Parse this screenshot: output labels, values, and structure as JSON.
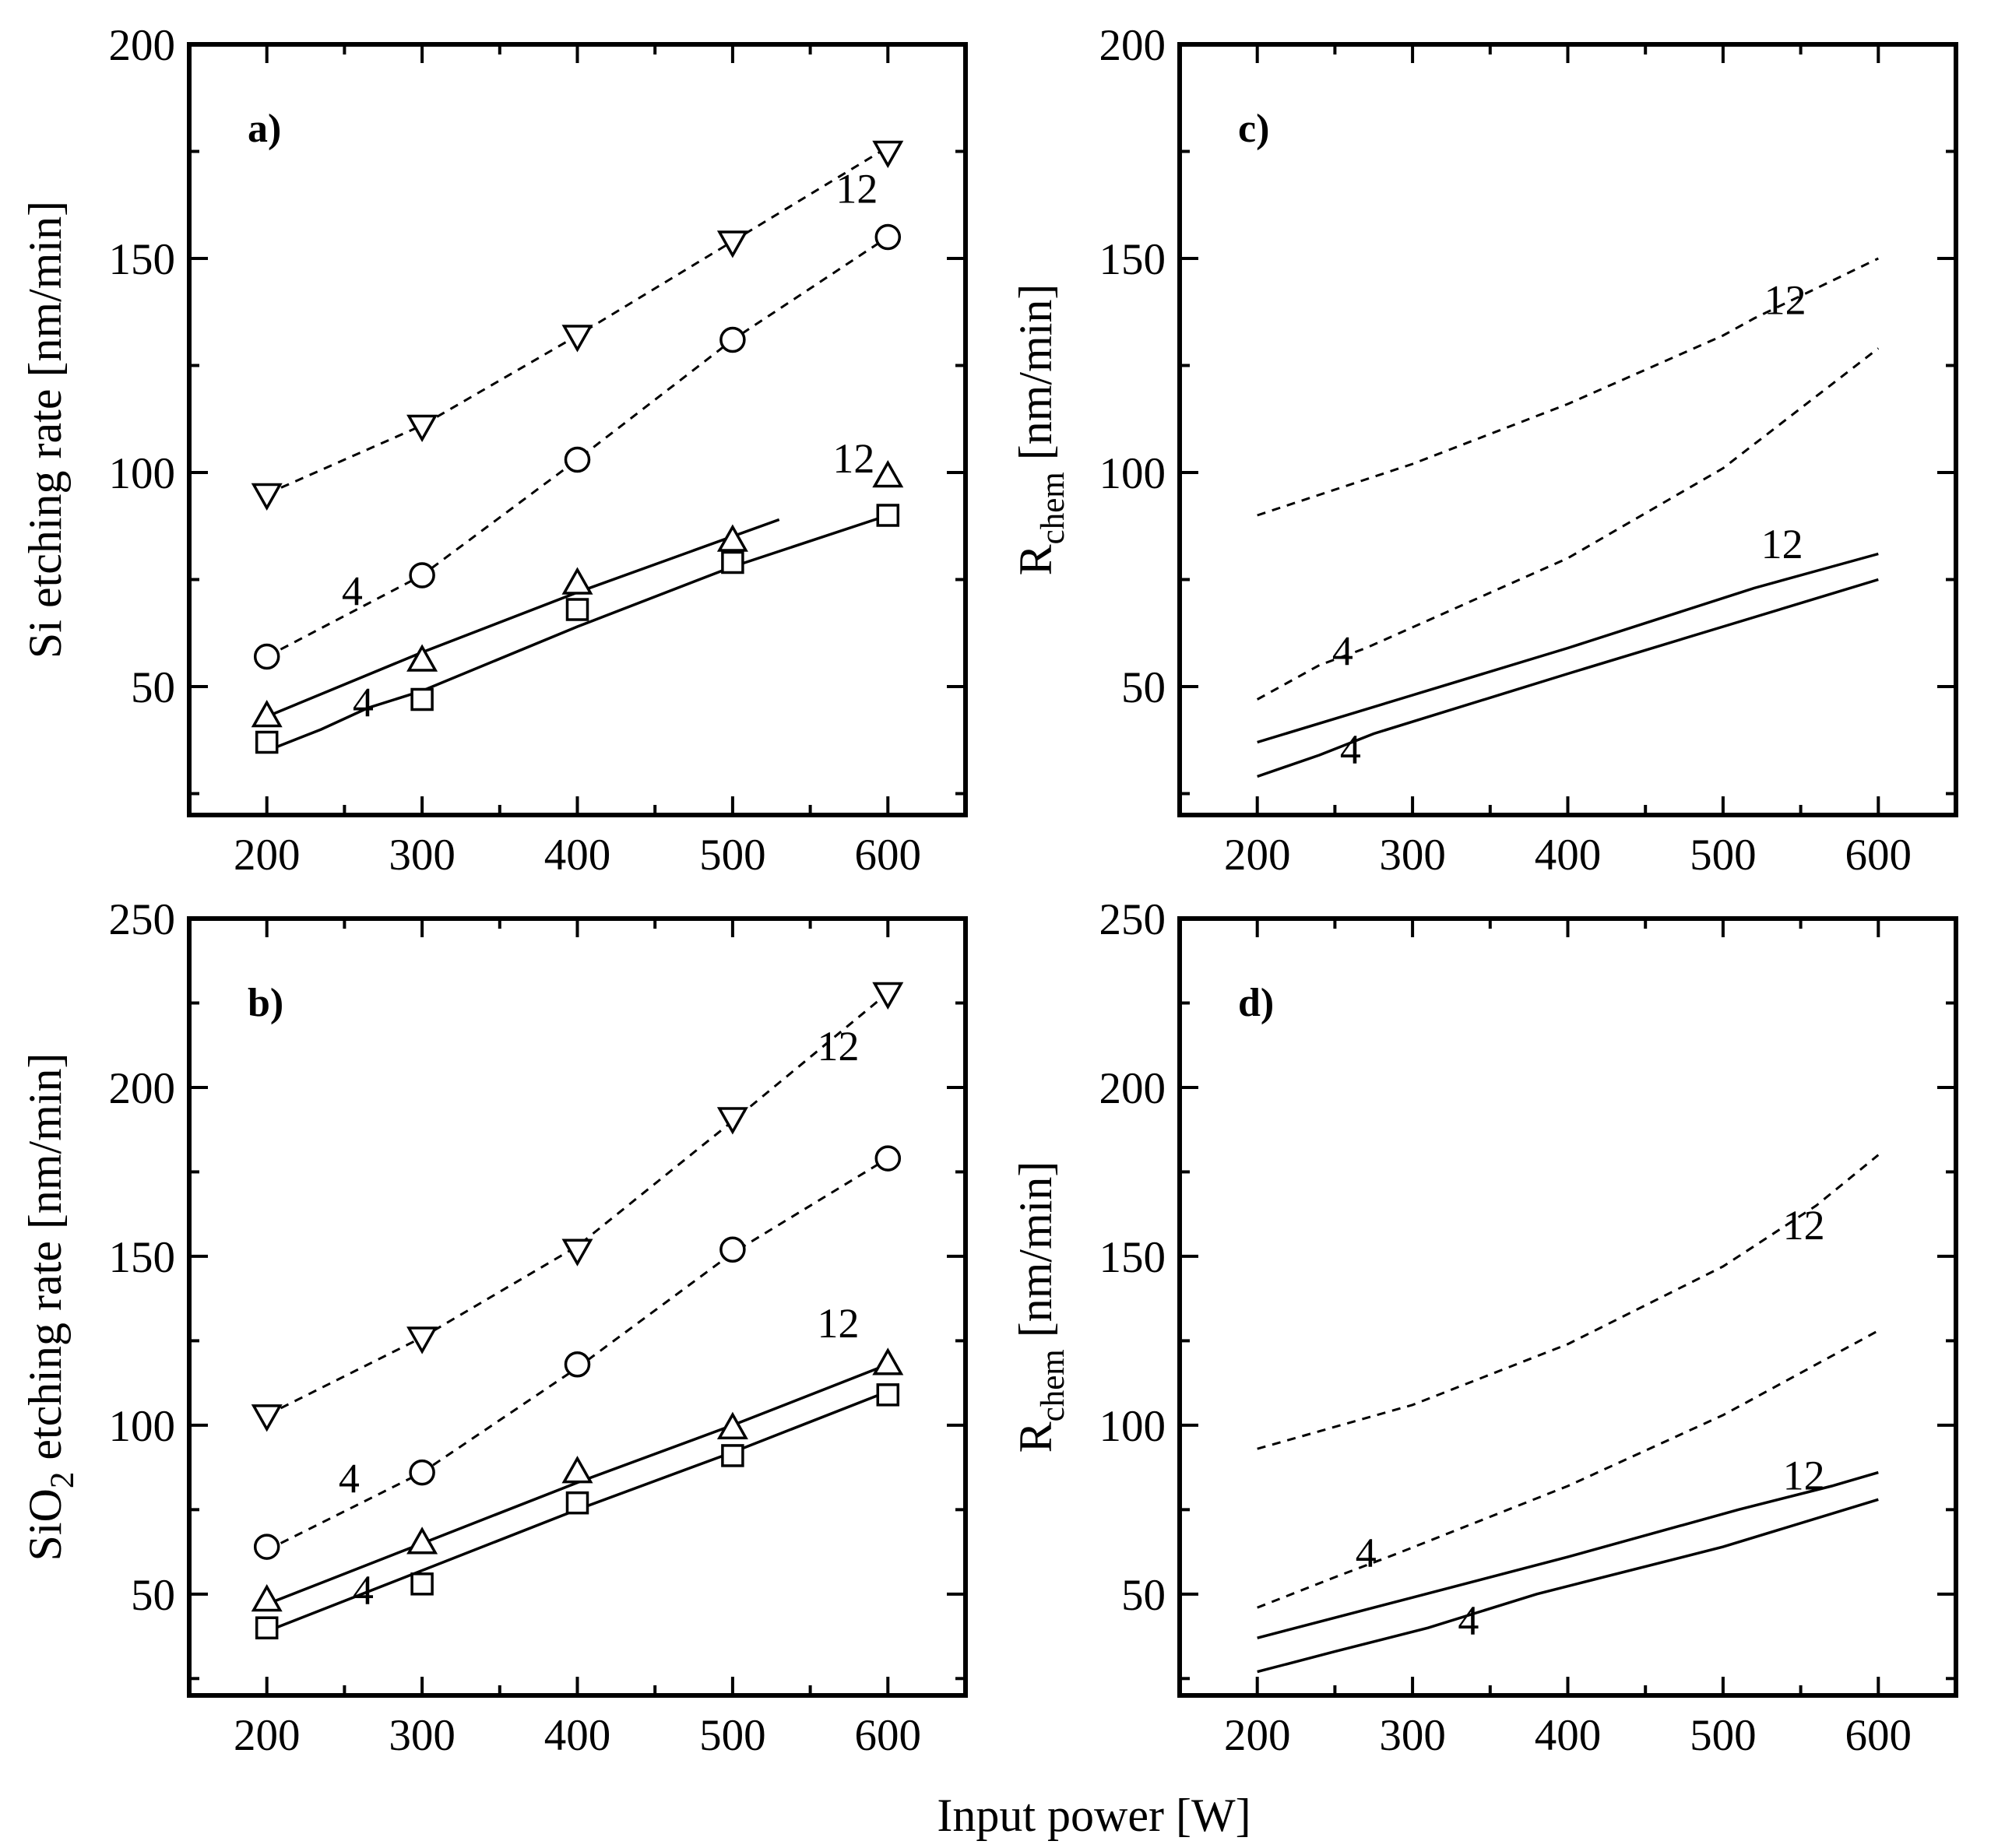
{
  "figure": {
    "common_xlabel": "Input power [W]"
  },
  "chart_data": [
    {
      "id": "a",
      "type": "line",
      "panel_label": "a)",
      "ylabel": "Si etching rate [nm/min]",
      "xlim": [
        150,
        650
      ],
      "ylim": [
        20,
        200
      ],
      "xticks": [
        200,
        300,
        400,
        500,
        600
      ],
      "yticks": [
        50,
        100,
        150,
        200
      ],
      "series": [
        {
          "name": "down-triangle",
          "marker": "tri-down",
          "line": "dashed",
          "x": [
            200,
            300,
            400,
            500,
            600
          ],
          "values": [
            95,
            111,
            132,
            154,
            175
          ],
          "curve_x": [
            200,
            300,
            400,
            500,
            600
          ],
          "curve_y": [
            95,
            111,
            132,
            154,
            176
          ]
        },
        {
          "name": "circle",
          "marker": "circle",
          "line": "dashed",
          "x": [
            200,
            300,
            400,
            500,
            600
          ],
          "values": [
            57,
            76,
            103,
            131,
            155
          ],
          "curve_x": [
            200,
            300,
            400,
            500,
            600
          ],
          "curve_y": [
            57,
            76,
            103,
            131,
            155
          ]
        },
        {
          "name": "up-triangle",
          "marker": "tri-up",
          "line": "solid",
          "x": [
            200,
            300,
            400,
            500,
            600
          ],
          "values": [
            43,
            56,
            74,
            84,
            99
          ],
          "curve_x": [
            200,
            300,
            400,
            530
          ],
          "curve_y": [
            43,
            58,
            72,
            89
          ]
        },
        {
          "name": "square",
          "marker": "square",
          "line": "solid",
          "x": [
            200,
            300,
            400,
            500,
            600
          ],
          "values": [
            37,
            47,
            68,
            79,
            90
          ],
          "curve_x": [
            200,
            235,
            265,
            300,
            400,
            500,
            600
          ],
          "curve_y": [
            35,
            40,
            45,
            49,
            64,
            78,
            90
          ]
        }
      ],
      "annotations": [
        {
          "text": "12",
          "x": 580,
          "y": 163
        },
        {
          "text": "4",
          "x": 255,
          "y": 69
        },
        {
          "text": "12",
          "x": 578,
          "y": 100
        },
        {
          "text": "4",
          "x": 262,
          "y": 43
        }
      ]
    },
    {
      "id": "c",
      "type": "line",
      "panel_label": "c)",
      "ylabel_main": "R",
      "ylabel_sub": "chem",
      "ylabel_rest": " [nm/min]",
      "xlim": [
        150,
        650
      ],
      "ylim": [
        20,
        200
      ],
      "xticks": [
        200,
        300,
        400,
        500,
        600
      ],
      "yticks": [
        50,
        100,
        150,
        200
      ],
      "series": [
        {
          "name": "dashed-12",
          "line": "dashed",
          "curve_x": [
            200,
            300,
            400,
            500,
            520,
            560,
            600
          ],
          "curve_y": [
            90,
            102,
            116,
            132,
            136,
            143,
            150
          ]
        },
        {
          "name": "dashed-4",
          "line": "dashed",
          "curve_x": [
            200,
            240,
            270,
            400,
            500,
            600
          ],
          "curve_y": [
            47,
            55,
            59,
            80,
            101,
            129
          ]
        },
        {
          "name": "solid-12",
          "line": "solid",
          "curve_x": [
            200,
            300,
            400,
            520,
            560,
            600
          ],
          "curve_y": [
            37,
            48,
            59,
            73,
            77,
            81
          ]
        },
        {
          "name": "solid-4",
          "line": "solid",
          "curve_x": [
            200,
            240,
            275,
            400,
            500,
            600
          ],
          "curve_y": [
            29,
            34,
            39,
            53,
            64,
            75
          ]
        }
      ],
      "annotations": [
        {
          "text": "12",
          "x": 540,
          "y": 137
        },
        {
          "text": "4",
          "x": 255,
          "y": 55
        },
        {
          "text": "12",
          "x": 538,
          "y": 80
        },
        {
          "text": "4",
          "x": 260,
          "y": 32
        }
      ]
    },
    {
      "id": "b",
      "type": "line",
      "panel_label": "b)",
      "ylabel_main": "SiO",
      "ylabel_sub": "2",
      "ylabel_rest": " etching rate [nm/min]",
      "xlim": [
        150,
        650
      ],
      "ylim": [
        20,
        250
      ],
      "xticks": [
        200,
        300,
        400,
        500,
        600
      ],
      "yticks": [
        50,
        100,
        150,
        200,
        250
      ],
      "series": [
        {
          "name": "down-triangle",
          "marker": "tri-down",
          "line": "dashed",
          "x": [
            200,
            300,
            400,
            500,
            600
          ],
          "values": [
            103,
            126,
            152,
            191,
            228
          ],
          "curve_x": [
            200,
            300,
            400,
            500,
            600
          ],
          "curve_y": [
            103,
            126,
            153,
            190,
            228
          ]
        },
        {
          "name": "circle",
          "marker": "circle",
          "line": "dashed",
          "x": [
            200,
            300,
            400,
            500,
            600
          ],
          "values": [
            64,
            86,
            118,
            152,
            179
          ],
          "curve_x": [
            200,
            300,
            400,
            500,
            600
          ],
          "curve_y": [
            63,
            86,
            117,
            151,
            179
          ]
        },
        {
          "name": "up-triangle",
          "marker": "tri-up",
          "line": "solid",
          "x": [
            200,
            300,
            400,
            500,
            600
          ],
          "values": [
            48,
            65,
            86,
            99,
            118
          ],
          "curve_x": [
            200,
            300,
            400,
            500,
            600
          ],
          "curve_y": [
            47,
            65,
            83,
            100,
            118
          ]
        },
        {
          "name": "square",
          "marker": "square",
          "line": "solid",
          "x": [
            200,
            300,
            400,
            500,
            600
          ],
          "values": [
            40,
            53,
            77,
            91,
            109
          ],
          "curve_x": [
            200,
            300,
            400,
            500,
            600
          ],
          "curve_y": [
            39,
            57,
            75,
            92,
            110
          ]
        }
      ],
      "annotations": [
        {
          "text": "12",
          "x": 568,
          "y": 208
        },
        {
          "text": "4",
          "x": 253,
          "y": 80
        },
        {
          "text": "12",
          "x": 568,
          "y": 126
        },
        {
          "text": "4",
          "x": 262,
          "y": 47
        }
      ]
    },
    {
      "id": "d",
      "type": "line",
      "panel_label": "d)",
      "ylabel_main": "R",
      "ylabel_sub": "chem",
      "ylabel_rest": " [nm/min]",
      "xlim": [
        150,
        650
      ],
      "ylim": [
        20,
        250
      ],
      "xticks": [
        200,
        300,
        400,
        500,
        600
      ],
      "yticks": [
        50,
        100,
        150,
        200,
        250
      ],
      "series": [
        {
          "name": "dashed-12",
          "line": "dashed",
          "curve_x": [
            200,
            300,
            400,
            500,
            520,
            560,
            600
          ],
          "curve_y": [
            93,
            106,
            124,
            147,
            153,
            165,
            180
          ]
        },
        {
          "name": "dashed-4",
          "line": "dashed",
          "curve_x": [
            200,
            250,
            290,
            400,
            500,
            600
          ],
          "curve_y": [
            46,
            55,
            62,
            82,
            103,
            128
          ]
        },
        {
          "name": "solid-12",
          "line": "solid",
          "curve_x": [
            200,
            300,
            400,
            510,
            570,
            600
          ],
          "curve_y": [
            37,
            49,
            61,
            75,
            82,
            86
          ]
        },
        {
          "name": "solid-4",
          "line": "solid",
          "curve_x": [
            200,
            250,
            310,
            380,
            500,
            600
          ],
          "curve_y": [
            27,
            33,
            40,
            50,
            64,
            78
          ]
        }
      ],
      "annotations": [
        {
          "text": "12",
          "x": 552,
          "y": 155
        },
        {
          "text": "4",
          "x": 270,
          "y": 58
        },
        {
          "text": "12",
          "x": 552,
          "y": 81
        },
        {
          "text": "4",
          "x": 336,
          "y": 38
        }
      ]
    }
  ]
}
